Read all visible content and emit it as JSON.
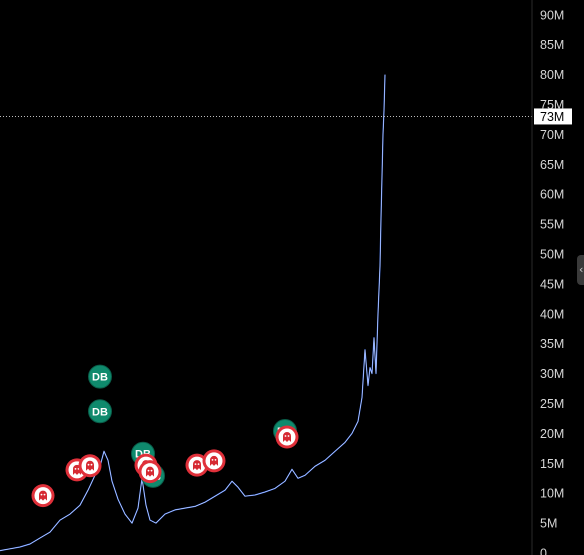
{
  "chart_data": {
    "type": "line",
    "title": "",
    "xlabel": "",
    "ylabel": "",
    "ylim": [
      0,
      92000000
    ],
    "y_ticks": [
      {
        "value": 0,
        "label": "0"
      },
      {
        "value": 5000000,
        "label": "5M"
      },
      {
        "value": 10000000,
        "label": "10M"
      },
      {
        "value": 15000000,
        "label": "15M"
      },
      {
        "value": 20000000,
        "label": "20M"
      },
      {
        "value": 25000000,
        "label": "25M"
      },
      {
        "value": 30000000,
        "label": "30M"
      },
      {
        "value": 35000000,
        "label": "35M"
      },
      {
        "value": 40000000,
        "label": "40M"
      },
      {
        "value": 45000000,
        "label": "45M"
      },
      {
        "value": 50000000,
        "label": "50M"
      },
      {
        "value": 55000000,
        "label": "55M"
      },
      {
        "value": 60000000,
        "label": "60M"
      },
      {
        "value": 65000000,
        "label": "65M"
      },
      {
        "value": 70000000,
        "label": "70M"
      },
      {
        "value": 75000000,
        "label": "75M"
      },
      {
        "value": 80000000,
        "label": "80M"
      },
      {
        "value": 85000000,
        "label": "85M"
      },
      {
        "value": 90000000,
        "label": "90M"
      }
    ],
    "crosshair": {
      "value": 73000000,
      "label": "73M"
    },
    "grid": false,
    "series": [
      {
        "color": "#4a7dff",
        "x": [
          0,
          10,
          20,
          30,
          40,
          50,
          60,
          70,
          80,
          88,
          95,
          100,
          104,
          108,
          112,
          118,
          125,
          132,
          138,
          142,
          146,
          150,
          156,
          165,
          175,
          185,
          195,
          205,
          215,
          225,
          232,
          238,
          245,
          255,
          265,
          275,
          285,
          292,
          298,
          305,
          315,
          325,
          335,
          345,
          352,
          358,
          362,
          365,
          368,
          370,
          372,
          374,
          376,
          378,
          380,
          381,
          382,
          383,
          384,
          385
        ],
        "y": [
          400000,
          700000,
          1000000,
          1500000,
          2500000,
          3500000,
          5500000,
          6500000,
          8000000,
          10500000,
          13000000,
          14500000,
          17000000,
          15500000,
          12000000,
          9000000,
          6500000,
          5000000,
          7500000,
          12500000,
          8000000,
          5500000,
          5000000,
          6500000,
          7200000,
          7500000,
          7800000,
          8500000,
          9500000,
          10500000,
          12000000,
          11000000,
          9500000,
          9700000,
          10200000,
          10800000,
          12000000,
          14000000,
          12500000,
          13000000,
          14500000,
          15500000,
          17000000,
          18500000,
          20000000,
          22000000,
          26000000,
          34000000,
          28000000,
          31000000,
          30000000,
          36000000,
          30000000,
          40000000,
          48000000,
          56000000,
          63000000,
          70000000,
          74000000,
          80000000
        ]
      }
    ],
    "markers": [
      {
        "type": "DB",
        "x": 100,
        "y": 29500000,
        "color": "#0f8a6d"
      },
      {
        "type": "DB",
        "x": 100,
        "y": 23700000,
        "color": "#0f8a6d"
      },
      {
        "type": "DB",
        "x": 143,
        "y": 16600000,
        "color": "#0f8a6d"
      },
      {
        "type": "DB",
        "x": 153,
        "y": 12900000,
        "color": "#0f8a6d"
      },
      {
        "type": "DB",
        "x": 285,
        "y": 20400000,
        "color": "#0f8a6d"
      },
      {
        "type": "ghost",
        "x": 43,
        "y": 9600000,
        "color": "#e0303a"
      },
      {
        "type": "ghost",
        "x": 77,
        "y": 13900000,
        "color": "#e0303a"
      },
      {
        "type": "ghost",
        "x": 90,
        "y": 14600000,
        "color": "#e0303a"
      },
      {
        "type": "ghost",
        "x": 146,
        "y": 14700000,
        "color": "#e0303a"
      },
      {
        "type": "ghost",
        "x": 150,
        "y": 13600000,
        "color": "#e0303a"
      },
      {
        "type": "ghost",
        "x": 197,
        "y": 14700000,
        "color": "#e0303a"
      },
      {
        "type": "ghost",
        "x": 214,
        "y": 15400000,
        "color": "#e0303a"
      },
      {
        "type": "ghost",
        "x": 287,
        "y": 19400000,
        "color": "#e0303a"
      }
    ]
  },
  "ui": {
    "collapse_handle_icon": "chevron-left-icon",
    "collapse_handle_glyph": "‹"
  }
}
